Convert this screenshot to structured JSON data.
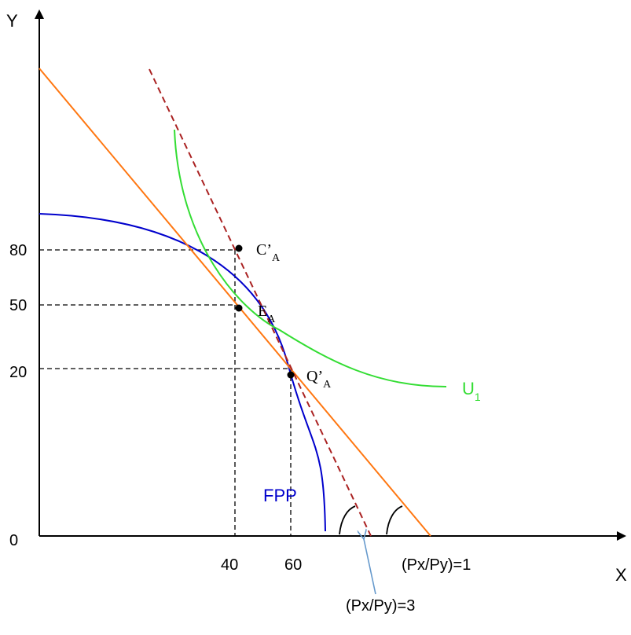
{
  "axes": {
    "x_label": "X",
    "y_label": "Y",
    "origin_label": "0",
    "x_ticks": [
      "40",
      "60"
    ],
    "y_ticks": [
      "80",
      "50",
      "20"
    ]
  },
  "curves": {
    "ppf_label": "FPP",
    "indifference_label": "U",
    "indifference_subscript": "1"
  },
  "points": {
    "consumption": {
      "label": "C’",
      "subscript": "A"
    },
    "equilibrium": {
      "label": "E",
      "subscript": "A"
    },
    "production": {
      "label": "Q’",
      "subscript": "A"
    }
  },
  "price_lines": {
    "initial": "(Px/Py)=1",
    "new": "(Px/Py)=3"
  },
  "colors": {
    "axis": "#000000",
    "ppf": "#0000cc",
    "indifference": "#33dd33",
    "price_line_initial": "#ff7711",
    "price_line_new": "#aa2222",
    "pointer_arrow": "#6699cc"
  }
}
